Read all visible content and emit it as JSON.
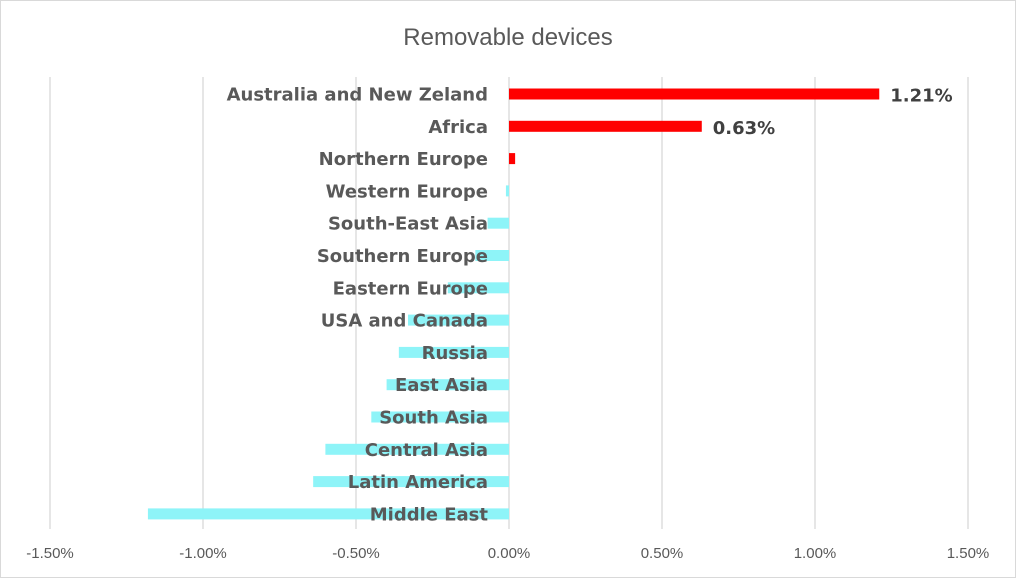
{
  "chart_data": {
    "type": "bar",
    "orientation": "horizontal",
    "title": "Removable devices",
    "xlabel": "",
    "ylabel": "",
    "xlim": [
      -0.015,
      0.015
    ],
    "x_ticks": [
      -0.015,
      -0.01,
      -0.005,
      0,
      0.005,
      0.01,
      0.015
    ],
    "x_tick_labels": [
      "-1.50%",
      "-1.00%",
      "-0.50%",
      "0.00%",
      "0.50%",
      "1.00%",
      "1.50%"
    ],
    "grid": true,
    "legend": "none",
    "categories": [
      "Australia and New Zeland",
      "Africa",
      "Northern Europe",
      "Western Europe",
      "South-East Asia",
      "Southern Europe",
      "Eastern Europe",
      "USA and Canada",
      "Russia",
      "East Asia",
      "South Asia",
      "Central Asia",
      "Latin America",
      "Middle East"
    ],
    "values": [
      0.0121,
      0.0063,
      0.0002,
      -0.0001,
      -0.0007,
      -0.0011,
      -0.002,
      -0.0033,
      -0.0036,
      -0.004,
      -0.0045,
      -0.006,
      -0.0064,
      -0.0118
    ],
    "data_labels": [
      "1.21%",
      "0.63%",
      "",
      "",
      "",
      "",
      "",
      "",
      "",
      "",
      "",
      "",
      "",
      ""
    ],
    "colors": {
      "positive": "#ff0000",
      "negative": "#8ef4f8",
      "grid": "#d9d9d9",
      "text": "#595959"
    }
  }
}
